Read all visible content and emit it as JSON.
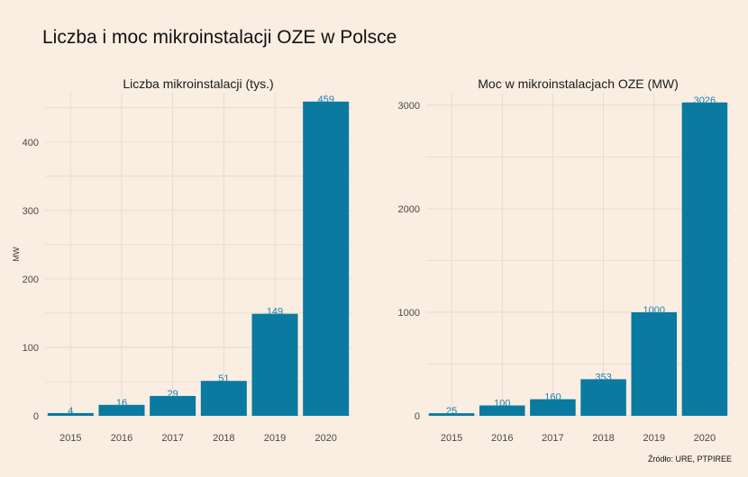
{
  "title": "Liczba i moc mikroinstalacji OZE w Polsce",
  "caption": "Źródło:  URE, PTPIREE",
  "colors": {
    "bar": "#0a7aa0",
    "label": "#1b83b3",
    "background": "#faede1",
    "grid": "#e6d8ca"
  },
  "chart_data": [
    {
      "type": "bar",
      "title": "Liczba mikroinstalacji (tys.)",
      "ylabel": "MW",
      "xlabel": "",
      "categories": [
        "2015",
        "2016",
        "2017",
        "2018",
        "2019",
        "2020"
      ],
      "values": [
        4,
        16,
        29,
        51,
        149,
        459
      ],
      "ylim": [
        0,
        472
      ],
      "yticks": [
        0,
        100,
        200,
        300,
        400
      ],
      "grid": true
    },
    {
      "type": "bar",
      "title": "Moc w mikroinstalacjach OZE (MW)",
      "ylabel": "",
      "xlabel": "",
      "categories": [
        "2015",
        "2016",
        "2017",
        "2018",
        "2019",
        "2020"
      ],
      "values": [
        25,
        100,
        160,
        353,
        1000,
        3026
      ],
      "ylim": [
        0,
        3120
      ],
      "yticks": [
        0,
        1000,
        2000,
        3000
      ],
      "grid": true
    }
  ]
}
